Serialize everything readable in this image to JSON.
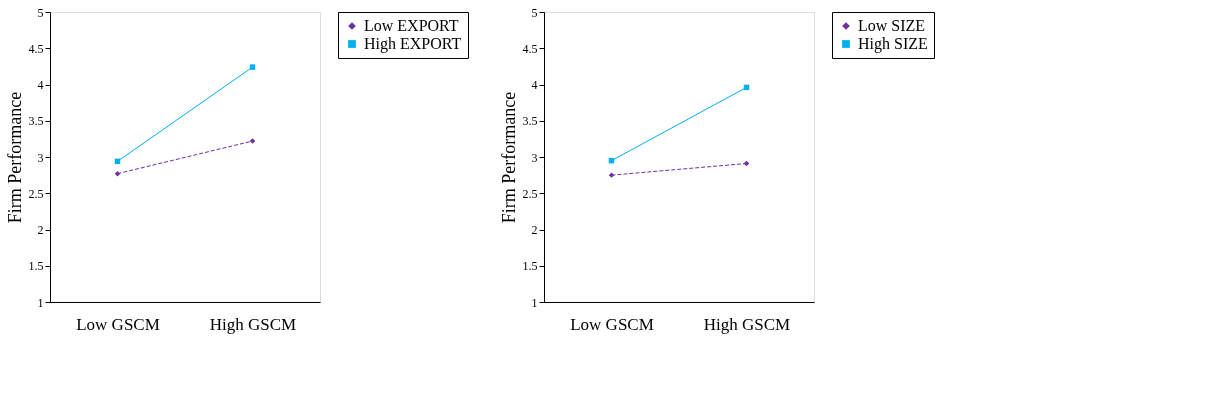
{
  "chart_data": [
    {
      "type": "line",
      "categories": [
        "Low GSCM",
        "High GSCM"
      ],
      "ylabel": "Firm Performance",
      "ylim": [
        1,
        5
      ],
      "yticks": [
        1,
        1.5,
        2,
        2.5,
        3,
        3.5,
        4,
        4.5,
        5
      ],
      "grid": false,
      "legend": "right",
      "series": [
        {
          "name": "Low EXPORT",
          "color": "#7030a0",
          "marker": "diamond",
          "line_style": "dashed",
          "values": [
            2.77,
            3.22
          ]
        },
        {
          "name": "High EXPORT",
          "color": "#00b0f0",
          "marker": "square",
          "line_style": "solid",
          "values": [
            2.94,
            4.24
          ]
        }
      ]
    },
    {
      "type": "line",
      "categories": [
        "Low GSCM",
        "High GSCM"
      ],
      "ylabel": "Firm Performance",
      "ylim": [
        1,
        5
      ],
      "yticks": [
        1,
        1.5,
        2,
        2.5,
        3,
        3.5,
        4,
        4.5,
        5
      ],
      "grid": false,
      "legend": "right",
      "series": [
        {
          "name": "Low SIZE",
          "color": "#7030a0",
          "marker": "diamond",
          "line_style": "dashed",
          "values": [
            2.75,
            2.91
          ]
        },
        {
          "name": "High SIZE",
          "color": "#00b0f0",
          "marker": "square",
          "line_style": "solid",
          "values": [
            2.95,
            3.96
          ]
        }
      ]
    }
  ]
}
